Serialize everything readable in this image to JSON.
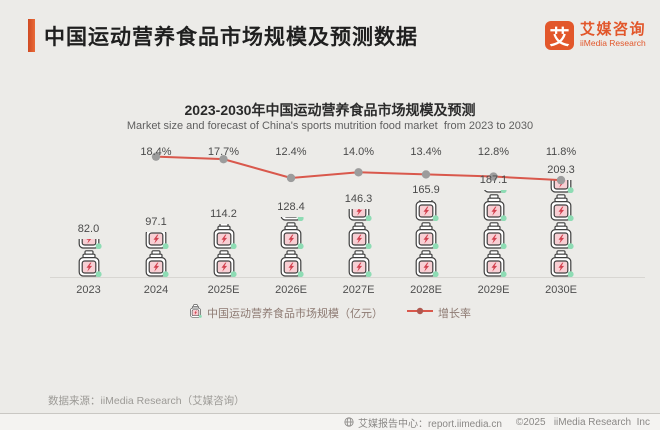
{
  "header": {
    "title": "中国运动营养食品市场规模及预测数据",
    "logo": {
      "glyph": "艾",
      "name_cn": "艾媒咨询",
      "name_en": "iiMedia Research"
    }
  },
  "chart_data": {
    "type": "bar",
    "subtype": "pictogram-bar-with-line",
    "title": "2023-2030年中国运动营养食品市场规模及预测",
    "subtitle": "Market size and forecast of China's sports mutrition food market  from 2023 to 2030",
    "categories": [
      "2023",
      "2024",
      "2025E",
      "2026E",
      "2027E",
      "2028E",
      "2029E",
      "2030E"
    ],
    "series": [
      {
        "name": "中国运动营养食品市场规模（亿元）",
        "type": "pictogram-bar",
        "values": [
          82.0,
          97.1,
          114.2,
          128.4,
          146.3,
          165.9,
          187.1,
          209.3
        ],
        "unit": "亿元"
      },
      {
        "name": "增长率",
        "type": "line",
        "values": [
          null,
          18.4,
          17.7,
          12.4,
          14.0,
          13.4,
          12.8,
          11.8
        ],
        "unit": "%"
      }
    ],
    "legend_position": "bottom",
    "value_labels_shown": true,
    "grid": false,
    "colors": {
      "line": "#d9584c",
      "line_dot": "#9c9c9c",
      "legend_dot": "#b0574e",
      "jar_outline": "#3f3f3f",
      "jar_body": "#ffffff",
      "jar_label": "#f8cfd4",
      "bolt": "#d2414f",
      "accent_green": "#8edcb4",
      "brand_orange": "#e2572b"
    }
  },
  "footer": {
    "source": "数据来源：iiMedia Research（艾媒咨询）",
    "report_center": "艾媒报告中心：report.iimedia.cn",
    "copyright": "©2025   iiMedia Research  Inc"
  }
}
